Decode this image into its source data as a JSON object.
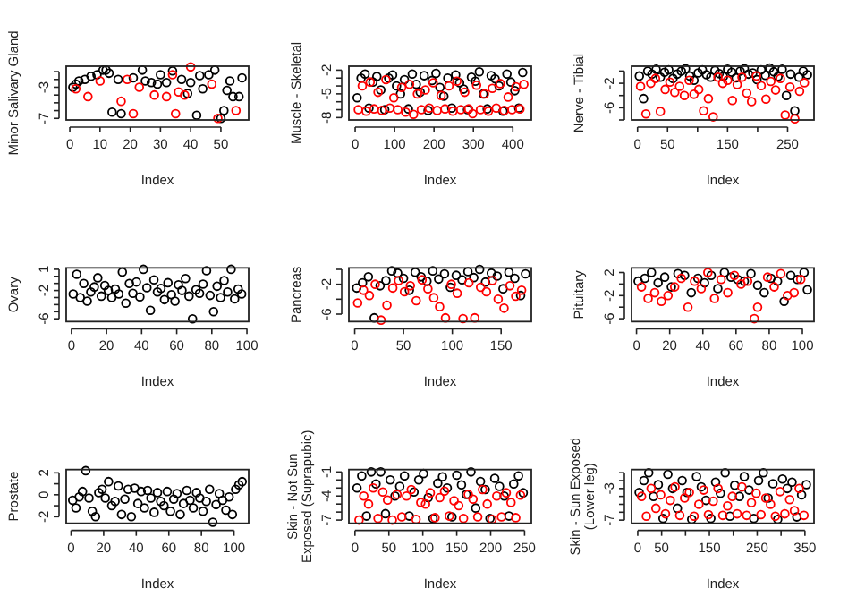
{
  "chart_data": [
    {
      "type": "scatter",
      "xlabel": "Index",
      "ylabel": "Minor Salivary Gland",
      "marker": "circle",
      "xlim": [
        -1.2,
        59.2
      ],
      "xticks": [
        0,
        10,
        20,
        30,
        40,
        50
      ],
      "ylim": [
        -7.2,
        -0.3
      ],
      "yticks": [
        -7,
        {
          "value": -6,
          "label": null
        },
        {
          "value": -5,
          "label": null
        },
        {
          "value": -4,
          "label": null
        },
        -3,
        {
          "value": -2,
          "label": null
        },
        {
          "value": -1,
          "label": null
        }
      ],
      "series": [
        {
          "color": "#000000",
          "x": [
            1,
            2,
            3,
            5,
            7,
            9,
            11,
            12,
            13,
            14,
            16,
            17,
            21,
            24,
            25,
            27,
            29,
            30,
            32,
            34,
            37,
            39,
            40,
            42,
            43,
            44,
            46,
            48,
            50,
            51,
            52,
            53,
            54,
            56,
            57
          ],
          "values": [
            -3,
            -2.6,
            -2.2,
            -2,
            -1.6,
            -1.4,
            -0.8,
            -0.8,
            -1.2,
            -6.2,
            -2,
            -6.4,
            -1.8,
            -0.8,
            -2.2,
            -2.4,
            -2.6,
            -1.4,
            -2.4,
            -0.9,
            -2,
            -3.8,
            -2.4,
            -6.6,
            -1.5,
            -3.2,
            -1.4,
            -0.8,
            -7,
            -6,
            -3.4,
            -2.2,
            -4.2,
            -4.2,
            -1.8
          ]
        },
        {
          "color": "#ff0000",
          "x": [
            2,
            6,
            10,
            17,
            19,
            21,
            23,
            28,
            32,
            34,
            35,
            36,
            38,
            40,
            47,
            49,
            55
          ],
          "values": [
            -3.2,
            -4.2,
            -2.2,
            -4.8,
            -2,
            -6.4,
            -3,
            -4,
            -4.2,
            -1.4,
            -6.4,
            -3.6,
            -4,
            -0.4,
            -2.6,
            -7,
            -6
          ]
        }
      ]
    },
    {
      "type": "scatter",
      "xlabel": "Index",
      "ylabel": "Muscle - Skeletal",
      "marker": "circle",
      "xlim": [
        -16,
        447
      ],
      "xticks": [
        0,
        100,
        200,
        300,
        400
      ],
      "ylim": [
        -8.3,
        -1.5
      ],
      "yticks": [
        -8,
        {
          "value": -7,
          "label": null
        },
        {
          "value": -6,
          "label": null
        },
        -5,
        {
          "value": -4,
          "label": null
        },
        {
          "value": -3,
          "label": null
        },
        -2
      ],
      "series": [
        {
          "color": "#000000",
          "x": [
            5,
            15,
            25,
            35,
            45,
            55,
            65,
            75,
            85,
            95,
            105,
            115,
            125,
            135,
            145,
            155,
            165,
            175,
            185,
            195,
            205,
            215,
            225,
            235,
            245,
            255,
            265,
            275,
            285,
            295,
            305,
            315,
            325,
            335,
            345,
            355,
            365,
            375,
            385,
            395,
            405,
            415,
            425
          ],
          "values": [
            -5.5,
            -3,
            -2.5,
            -6.8,
            -3.5,
            -2.8,
            -4.5,
            -7,
            -3,
            -2.6,
            -4,
            -5,
            -3.2,
            -6.9,
            -2.5,
            -3.8,
            -4.8,
            -2.7,
            -7.1,
            -3.3,
            -2.4,
            -4.2,
            -5.3,
            -3,
            -6.8,
            -2.6,
            -3.6,
            -4.4,
            -7,
            -2.9,
            -3.4,
            -2.2,
            -5,
            -6.9,
            -2.7,
            -3.1,
            -4,
            -7.2,
            -2.5,
            -3.5,
            -4.6,
            -6.8,
            -2.3
          ]
        },
        {
          "color": "#ff0000",
          "x": [
            8,
            18,
            28,
            38,
            48,
            58,
            68,
            78,
            88,
            98,
            108,
            118,
            128,
            138,
            148,
            158,
            168,
            178,
            188,
            198,
            208,
            218,
            228,
            238,
            248,
            258,
            268,
            278,
            288,
            298,
            308,
            318,
            328,
            338,
            348,
            358,
            368,
            378,
            388,
            398,
            408,
            418,
            428
          ],
          "values": [
            -7,
            -4,
            -7.2,
            -3.5,
            -6.9,
            -4.8,
            -7.1,
            -3.2,
            -6.8,
            -5.5,
            -7,
            -4.2,
            -7.3,
            -3.8,
            -7.6,
            -5,
            -7,
            -4.5,
            -6.8,
            -3.6,
            -7.1,
            -5.2,
            -6.9,
            -4,
            -7.2,
            -3.4,
            -7,
            -4.8,
            -6.9,
            -7.5,
            -3.9,
            -7,
            -5,
            -7.2,
            -4.3,
            -6.8,
            -3.7,
            -7.1,
            -5.4,
            -7,
            -4.1,
            -6.9,
            -3.8
          ]
        }
      ]
    },
    {
      "type": "scatter",
      "xlabel": "Index",
      "ylabel": "Nerve - Tibial",
      "marker": "circle",
      "xlim": [
        -10,
        294
      ],
      "xticks": [
        0,
        50,
        {
          "value": 100,
          "label": null
        },
        150,
        {
          "value": 200,
          "label": null
        },
        250
      ],
      "ylim": [
        -8,
        0.8
      ],
      "yticks": [
        {
          "value": -8,
          "label": null
        },
        -6,
        {
          "value": -4,
          "label": null
        },
        -2,
        {
          "value": 0,
          "label": null
        }
      ],
      "series": [
        {
          "color": "#000000",
          "x": [
            3,
            10,
            17,
            24,
            31,
            38,
            45,
            52,
            59,
            66,
            73,
            80,
            87,
            94,
            101,
            108,
            115,
            122,
            129,
            136,
            143,
            150,
            157,
            164,
            171,
            178,
            185,
            192,
            199,
            206,
            213,
            220,
            227,
            234,
            241,
            248,
            255,
            262,
            269,
            276,
            283
          ],
          "values": [
            -0.8,
            -4.5,
            0,
            -0.5,
            0.3,
            -1,
            -0.2,
            0.2,
            -1.2,
            -0.5,
            0,
            0.4,
            -0.8,
            -1.5,
            -0.3,
            0.2,
            -0.6,
            -1,
            0.1,
            -0.4,
            -0.9,
            0.3,
            -0.2,
            -1.1,
            0,
            0.4,
            -0.5,
            -0.3,
            -1.4,
            0.2,
            -0.7,
            0.5,
            -0.1,
            -0.9,
            0.3,
            -4,
            -0.5,
            -6.5,
            -1,
            0,
            -0.6
          ]
        },
        {
          "color": "#ff0000",
          "x": [
            5,
            14,
            22,
            30,
            38,
            46,
            54,
            62,
            70,
            78,
            86,
            94,
            102,
            110,
            118,
            126,
            134,
            142,
            150,
            158,
            166,
            174,
            182,
            190,
            198,
            206,
            214,
            222,
            230,
            238,
            246,
            254,
            262,
            270,
            278
          ],
          "values": [
            -2.5,
            -7,
            -2,
            -1.2,
            -6.6,
            -3,
            -1.8,
            -3.5,
            -2.5,
            -4,
            -1.5,
            -3.8,
            -3,
            -6.5,
            -4.5,
            -7.5,
            -1,
            -2,
            -1.5,
            -4.8,
            -2.2,
            -1,
            -3.6,
            -5,
            -0.8,
            -2.4,
            -4.6,
            -1.7,
            -3.1,
            -1.2,
            -7.2,
            -2.6,
            -7.8,
            -3.3,
            -1.9
          ]
        }
      ]
    },
    {
      "type": "scatter",
      "xlabel": "Index",
      "ylabel": "Ovary",
      "marker": "circle",
      "xlim": [
        -3,
        101
      ],
      "xticks": [
        0,
        20,
        40,
        60,
        80,
        100
      ],
      "ylim": [
        -6.4,
        1.2
      ],
      "yticks": [
        -6,
        {
          "value": -5,
          "label": null
        },
        {
          "value": -4,
          "label": null
        },
        {
          "value": -3,
          "label": null
        },
        -2,
        {
          "value": -1,
          "label": null
        },
        {
          "value": 0,
          "label": null
        },
        1
      ],
      "series": [
        {
          "color": "#000000",
          "x": [
            1,
            3,
            5,
            7,
            9,
            11,
            13,
            15,
            17,
            19,
            21,
            23,
            25,
            27,
            29,
            31,
            33,
            35,
            37,
            39,
            41,
            43,
            45,
            47,
            49,
            51,
            53,
            55,
            57,
            59,
            61,
            63,
            65,
            67,
            69,
            71,
            73,
            75,
            77,
            79,
            81,
            83,
            85,
            87,
            89,
            91,
            93,
            95,
            97
          ],
          "values": [
            -2.5,
            0.3,
            -3,
            -1,
            -3.5,
            -2.2,
            -1.5,
            -0.2,
            -2.8,
            -1.3,
            -2,
            -3,
            -1.8,
            -2.5,
            0.6,
            -3.8,
            -1,
            -2.4,
            -0.8,
            -2.9,
            1,
            -1.6,
            -4.8,
            -0.5,
            -2.2,
            -1.7,
            -3.3,
            -0.9,
            -2.6,
            -3.5,
            -1.2,
            -2,
            -0.3,
            -2.8,
            -6,
            -1.9,
            -2.4,
            -1.1,
            0.8,
            -2.7,
            -5,
            -1.4,
            -3,
            -0.6,
            -2.2,
            1,
            -3.2,
            -1.8,
            -2.5
          ]
        }
      ]
    },
    {
      "type": "scatter",
      "xlabel": "Index",
      "ylabel": "Pancreas",
      "marker": "circle",
      "xlim": [
        -6,
        181
      ],
      "xticks": [
        0,
        50,
        100,
        150
      ],
      "ylim": [
        -7,
        0.2
      ],
      "yticks": [
        -6,
        {
          "value": -4,
          "label": null
        },
        -2,
        {
          "value": 0,
          "label": null
        }
      ],
      "series": [
        {
          "color": "#000000",
          "x": [
            2,
            8,
            14,
            20,
            26,
            32,
            38,
            44,
            50,
            56,
            62,
            68,
            74,
            80,
            86,
            92,
            98,
            104,
            110,
            116,
            122,
            128,
            134,
            140,
            146,
            152,
            158,
            164,
            170,
            175
          ],
          "values": [
            -2.5,
            -1.8,
            -1,
            -6.5,
            -2.2,
            -1.5,
            -0.2,
            -0.5,
            -1.2,
            -2.8,
            -0.4,
            -1,
            -1.6,
            -0.2,
            -1.3,
            -0.6,
            -2.4,
            -0.8,
            -1.4,
            -0.3,
            -1.1,
            0,
            -1.7,
            -0.5,
            -0.9,
            -2.6,
            -0.4,
            -1.2,
            -3.5,
            -0.6
          ]
        },
        {
          "color": "#ff0000",
          "x": [
            3,
            9,
            15,
            21,
            27,
            33,
            39,
            45,
            51,
            57,
            63,
            69,
            75,
            81,
            87,
            93,
            99,
            105,
            111,
            117,
            123,
            129,
            135,
            141,
            147,
            153,
            159,
            165,
            171
          ],
          "values": [
            -4.5,
            -2.8,
            -3.5,
            -2,
            -6.8,
            -4.8,
            -2.5,
            -1.5,
            -3,
            -2.2,
            -4.2,
            -1.4,
            -2.6,
            -3.8,
            -5,
            -6.5,
            -2,
            -3.2,
            -6.6,
            -1.8,
            -6.5,
            -2.4,
            -3,
            -1.5,
            -4,
            -5.2,
            -2.2,
            -3.6,
            -2.8
          ]
        }
      ]
    },
    {
      "type": "scatter",
      "xlabel": "Index",
      "ylabel": "Pituitary",
      "marker": "circle",
      "xlim": [
        -3,
        107
      ],
      "xticks": [
        0,
        20,
        40,
        60,
        80,
        100
      ],
      "ylim": [
        -6.5,
        2.8
      ],
      "yticks": [
        -6,
        {
          "value": -4,
          "label": null
        },
        -2,
        {
          "value": 0,
          "label": null
        },
        2
      ],
      "series": [
        {
          "color": "#000000",
          "x": [
            1,
            5,
            9,
            13,
            17,
            21,
            25,
            29,
            33,
            37,
            41,
            45,
            49,
            53,
            57,
            61,
            65,
            69,
            73,
            77,
            81,
            85,
            89,
            93,
            97,
            101,
            103
          ],
          "values": [
            0.5,
            1,
            2,
            0.2,
            1.2,
            -0.5,
            1.8,
            1.5,
            -1.5,
            1,
            0.2,
            1.5,
            -0.8,
            2,
            1.2,
            0.8,
            0.5,
            1.8,
            -0.2,
            -1.5,
            1,
            0.5,
            -3,
            1.5,
            0.8,
            2,
            -1
          ]
        },
        {
          "color": "#ff0000",
          "x": [
            3,
            7,
            11,
            15,
            19,
            23,
            27,
            31,
            35,
            39,
            43,
            47,
            51,
            55,
            59,
            63,
            67,
            71,
            73,
            79,
            83,
            87,
            91,
            95,
            99
          ],
          "values": [
            -0.5,
            -2.5,
            -1.5,
            -3,
            -2,
            -0.5,
            1,
            -4,
            0.5,
            -0.8,
            2,
            -2.5,
            0.8,
            -1.5,
            1.5,
            0,
            0.5,
            -6,
            -4,
            1.2,
            -0.5,
            1.8,
            -2,
            -1.5,
            0.8
          ]
        }
      ]
    },
    {
      "type": "scatter",
      "xlabel": "Index",
      "ylabel": "Prostate",
      "marker": "circle",
      "xlim": [
        -3,
        109
      ],
      "xticks": [
        0,
        20,
        40,
        60,
        80,
        100
      ],
      "ylim": [
        -2.6,
        2.3
      ],
      "yticks": [
        -2,
        {
          "value": -1,
          "label": null
        },
        0,
        {
          "value": 1,
          "label": null
        },
        2
      ],
      "series": [
        {
          "color": "#000000",
          "x": [
            1,
            3,
            5,
            7,
            9,
            11,
            13,
            15,
            17,
            19,
            21,
            23,
            25,
            27,
            29,
            31,
            33,
            35,
            37,
            39,
            41,
            43,
            45,
            47,
            49,
            51,
            53,
            55,
            57,
            59,
            61,
            63,
            65,
            67,
            69,
            71,
            73,
            75,
            77,
            79,
            81,
            83,
            85,
            87,
            89,
            91,
            93,
            95,
            97,
            99,
            101,
            103,
            105
          ],
          "values": [
            -0.5,
            -1.2,
            -0.2,
            0.3,
            2.2,
            -0.3,
            -1.5,
            -2,
            0.2,
            0.5,
            -0.3,
            1.2,
            -1,
            -0.6,
            0.8,
            -1.8,
            -0.4,
            0.5,
            -2,
            0.6,
            -0.8,
            0.3,
            -1.2,
            0.4,
            -0.3,
            -1.6,
            0.2,
            -0.6,
            -1,
            0.3,
            -1.5,
            -0.4,
            0.1,
            -1.8,
            -0.8,
            0.4,
            -0.5,
            -1.2,
            0.2,
            -0.3,
            -1.5,
            -0.6,
            0.5,
            -2.5,
            -0.9,
            0.1,
            -0.5,
            -1.4,
            -0.2,
            -1.8,
            0.5,
            0.9,
            1.2
          ]
        }
      ]
    },
    {
      "type": "scatter",
      "xlabel": "Index",
      "ylabel": "Skin - Not Sun Exposed (Suprapubic)",
      "marker": "circle",
      "xlim": [
        -9,
        260
      ],
      "xticks": [
        0,
        50,
        100,
        150,
        200,
        250
      ],
      "ylim": [
        -7.4,
        -0.7
      ],
      "yticks": [
        -7,
        {
          "value": -6,
          "label": null
        },
        {
          "value": -5,
          "label": null
        },
        -4,
        {
          "value": -3,
          "label": null
        },
        {
          "value": -2,
          "label": null
        },
        -1
      ],
      "series": [
        {
          "color": "#000000",
          "x": [
            3,
            10,
            17,
            24,
            31,
            38,
            45,
            52,
            59,
            66,
            73,
            80,
            87,
            94,
            101,
            108,
            115,
            122,
            129,
            136,
            143,
            150,
            157,
            164,
            171,
            178,
            185,
            192,
            199,
            206,
            213,
            220,
            227,
            234,
            241,
            248
          ],
          "values": [
            -3,
            -1.5,
            -6.5,
            -1,
            -2.5,
            -1,
            -6.2,
            -2,
            -4,
            -2.8,
            -1.5,
            -6.5,
            -3.5,
            -2,
            -1.2,
            -4.2,
            -6.8,
            -2.4,
            -1.6,
            -3,
            -6.6,
            -1.4,
            -2.6,
            -3.8,
            -1,
            -5.5,
            -2.2,
            -3.2,
            -6.8,
            -1.8,
            -2.8,
            -4,
            -6.5,
            -2.5,
            -1.5,
            -3.6
          ]
        },
        {
          "color": "#ff0000",
          "x": [
            6,
            13,
            20,
            27,
            34,
            41,
            48,
            55,
            62,
            69,
            76,
            83,
            90,
            97,
            104,
            111,
            118,
            125,
            132,
            139,
            146,
            153,
            160,
            167,
            174,
            181,
            188,
            195,
            202,
            209,
            216,
            223,
            230,
            237,
            244
          ],
          "values": [
            -7,
            -4,
            -5,
            -3,
            -6.8,
            -3.5,
            -4.5,
            -7,
            -3.8,
            -6.6,
            -4,
            -3.2,
            -6.9,
            -4.8,
            -5,
            -3.6,
            -6.7,
            -4.2,
            -3.4,
            -6.5,
            -4.6,
            -5.2,
            -6.8,
            -3.8,
            -4.4,
            -6.6,
            -3.2,
            -5,
            -6.9,
            -4,
            -6.6,
            -3.6,
            -4.8,
            -6.7,
            -3.9
          ]
        }
      ]
    },
    {
      "type": "scatter",
      "xlabel": "Index",
      "ylabel": "Skin - Sun Exposed (Lower leg)",
      "marker": "circle",
      "xlim": [
        -13,
        369
      ],
      "xticks": [
        0,
        50,
        {
          "value": 100,
          "label": null
        },
        150,
        {
          "value": 200,
          "label": null
        },
        250,
        {
          "value": 300,
          "label": null
        },
        350
      ],
      "ylim": [
        -7.4,
        -0.6
      ],
      "yticks": [
        -7,
        {
          "value": -6,
          "label": null
        },
        {
          "value": -5,
          "label": null
        },
        {
          "value": -4,
          "label": null
        },
        -3,
        {
          "value": -2,
          "label": null
        },
        {
          "value": -1,
          "label": null
        }
      ],
      "series": [
        {
          "color": "#000000",
          "x": [
            3,
            13,
            23,
            33,
            43,
            53,
            63,
            73,
            83,
            93,
            103,
            113,
            123,
            133,
            143,
            153,
            163,
            173,
            183,
            193,
            203,
            213,
            223,
            233,
            243,
            253,
            263,
            273,
            283,
            293,
            303,
            313,
            323,
            333,
            343,
            353
          ],
          "values": [
            -3.5,
            -2,
            -1,
            -4,
            -2.5,
            -6.8,
            -1.2,
            -3,
            -5.5,
            -2,
            -3.5,
            -6.9,
            -1.5,
            -2.8,
            -4.5,
            -6.8,
            -2.2,
            -3.6,
            -1,
            -6.5,
            -2.6,
            -4,
            -1.5,
            -3.2,
            -6.8,
            -2,
            -1,
            -4.2,
            -2.4,
            -6.9,
            -1.8,
            -3,
            -2.2,
            -6.6,
            -3.8,
            -2.5
          ]
        },
        {
          "color": "#ff0000",
          "x": [
            8,
            18,
            28,
            38,
            48,
            58,
            68,
            78,
            88,
            98,
            108,
            118,
            128,
            138,
            148,
            158,
            168,
            178,
            188,
            198,
            208,
            218,
            228,
            238,
            248,
            258,
            268,
            278,
            288,
            298,
            308,
            318,
            328,
            338,
            348
          ],
          "values": [
            -4,
            -6.5,
            -3,
            -5.5,
            -3.8,
            -6.2,
            -4.5,
            -2.8,
            -6.4,
            -4.2,
            -3.5,
            -6.5,
            -5,
            -3.2,
            -6.3,
            -4.6,
            -3,
            -6.4,
            -5.2,
            -4,
            -6.2,
            -2.8,
            -6.4,
            -4.8,
            -3.6,
            -6.3,
            -4.2,
            -5,
            -6.5,
            -3.4,
            -6.2,
            -4.4,
            -5.8,
            -3,
            -6.4
          ]
        }
      ]
    }
  ]
}
